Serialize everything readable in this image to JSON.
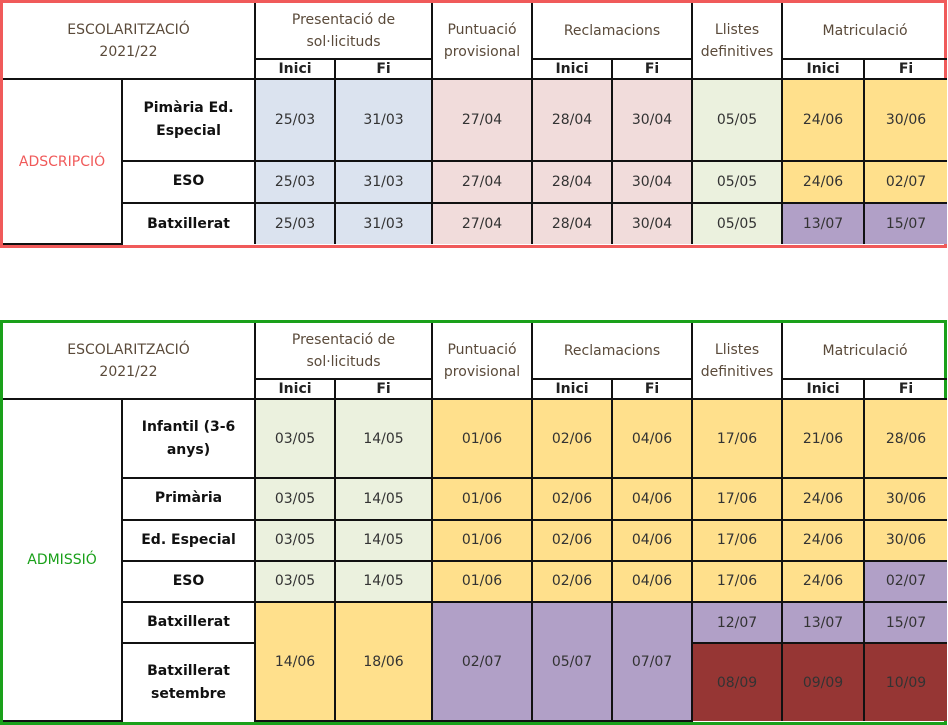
{
  "colors": {
    "blue": "#dbe3ef",
    "pink": "#f1dcdb",
    "green": "#ebf1de",
    "yellow": "#ffe08c",
    "purple": "#b1a0c7",
    "red": "#963634",
    "white": "#ffffff"
  },
  "headers": {
    "escolaritzacio": "ESCOLARITZACIÓ",
    "year": "2021/22",
    "presentacio": "Presentació de sol·licituds",
    "puntuacio": "Puntuació provisional",
    "reclamacions": "Reclamacions",
    "llistes": "Llistes definitives",
    "matriculacio": "Matriculació",
    "inici": "Inici",
    "fi": "Fi"
  },
  "tables": [
    {
      "group": "ADSCRIPCIÓ",
      "group_color": "#f05a5a",
      "rows": [
        {
          "name": "Pimària Ed. Especial",
          "cells": [
            [
              "25/03",
              "blue"
            ],
            [
              "31/03",
              "blue"
            ],
            [
              "27/04",
              "pink"
            ],
            [
              "28/04",
              "pink"
            ],
            [
              "30/04",
              "pink"
            ],
            [
              "05/05",
              "green"
            ],
            [
              "24/06",
              "yellow"
            ],
            [
              "30/06",
              "yellow"
            ]
          ]
        },
        {
          "name": "ESO",
          "cells": [
            [
              "25/03",
              "blue"
            ],
            [
              "31/03",
              "blue"
            ],
            [
              "27/04",
              "pink"
            ],
            [
              "28/04",
              "pink"
            ],
            [
              "30/04",
              "pink"
            ],
            [
              "05/05",
              "green"
            ],
            [
              "24/06",
              "yellow"
            ],
            [
              "02/07",
              "yellow"
            ]
          ]
        },
        {
          "name": "Batxillerat",
          "cells": [
            [
              "25/03",
              "blue"
            ],
            [
              "31/03",
              "blue"
            ],
            [
              "27/04",
              "pink"
            ],
            [
              "28/04",
              "pink"
            ],
            [
              "30/04",
              "pink"
            ],
            [
              "05/05",
              "green"
            ],
            [
              "13/07",
              "purple"
            ],
            [
              "15/07",
              "purple"
            ]
          ]
        }
      ]
    },
    {
      "group": "ADMISSIÓ",
      "group_color": "#1aa01a",
      "rows": [
        {
          "name": "Infantil (3-6 anys)",
          "cells": [
            [
              "03/05",
              "green"
            ],
            [
              "14/05",
              "green"
            ],
            [
              "01/06",
              "yellow"
            ],
            [
              "02/06",
              "yellow"
            ],
            [
              "04/06",
              "yellow"
            ],
            [
              "17/06",
              "yellow"
            ],
            [
              "21/06",
              "yellow"
            ],
            [
              "28/06",
              "yellow"
            ]
          ]
        },
        {
          "name": "Primària",
          "cells": [
            [
              "03/05",
              "green"
            ],
            [
              "14/05",
              "green"
            ],
            [
              "01/06",
              "yellow"
            ],
            [
              "02/06",
              "yellow"
            ],
            [
              "04/06",
              "yellow"
            ],
            [
              "17/06",
              "yellow"
            ],
            [
              "24/06",
              "yellow"
            ],
            [
              "30/06",
              "yellow"
            ]
          ]
        },
        {
          "name": "Ed. Especial",
          "cells": [
            [
              "03/05",
              "green"
            ],
            [
              "14/05",
              "green"
            ],
            [
              "01/06",
              "yellow"
            ],
            [
              "02/06",
              "yellow"
            ],
            [
              "04/06",
              "yellow"
            ],
            [
              "17/06",
              "yellow"
            ],
            [
              "24/06",
              "yellow"
            ],
            [
              "30/06",
              "yellow"
            ]
          ]
        },
        {
          "name": "ESO",
          "cells": [
            [
              "03/05",
              "green"
            ],
            [
              "14/05",
              "green"
            ],
            [
              "01/06",
              "yellow"
            ],
            [
              "02/06",
              "yellow"
            ],
            [
              "04/06",
              "yellow"
            ],
            [
              "17/06",
              "yellow"
            ],
            [
              "24/06",
              "yellow"
            ],
            [
              "02/07",
              "purple"
            ]
          ]
        },
        {
          "name": "Batxillerat",
          "cells": [
            [
              "14/06",
              "yellow"
            ],
            [
              "18/06",
              "yellow"
            ],
            [
              "02/07",
              "purple"
            ],
            [
              "05/07",
              "purple"
            ],
            [
              "07/07",
              "purple"
            ],
            [
              "12/07",
              "purple"
            ],
            [
              "13/07",
              "purple"
            ],
            [
              "15/07",
              "purple"
            ]
          ]
        },
        {
          "name": "Batxillerat setembre",
          "cells": [
            null,
            null,
            null,
            null,
            null,
            [
              "08/09",
              "red"
            ],
            [
              "09/09",
              "red"
            ],
            [
              "10/09",
              "red"
            ]
          ]
        }
      ]
    }
  ]
}
